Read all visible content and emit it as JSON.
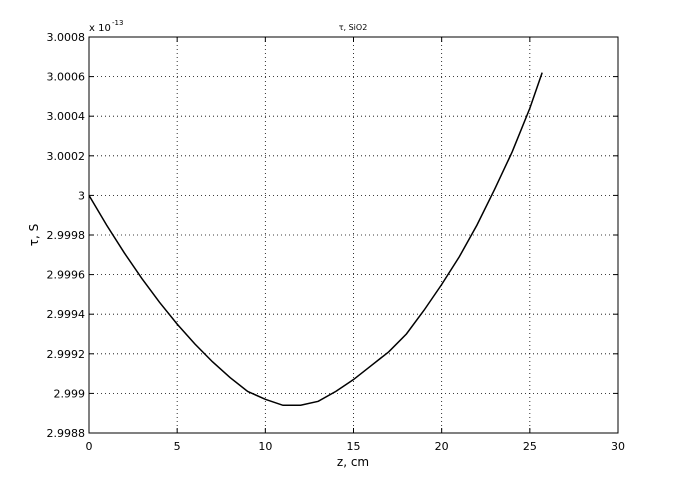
{
  "chart_data": {
    "type": "line",
    "title": "τ, SiO2",
    "x_label": "z, cm",
    "y_label": "τ, S",
    "multiplier": "x 10",
    "multiplier_exponent": "-13",
    "x": [
      0,
      1,
      2,
      3,
      4,
      5,
      6,
      7,
      8,
      9,
      10,
      11,
      12,
      13,
      14,
      15,
      16,
      17,
      18,
      19,
      20,
      21,
      22,
      23,
      24,
      25,
      25.7
    ],
    "series": [
      {
        "color": "#000000",
        "values": [
          3.0,
          2.99985,
          2.99971,
          2.99958,
          2.99946,
          2.99935,
          2.99925,
          2.99916,
          2.99908,
          2.99901,
          2.99897,
          2.99894,
          2.99894,
          2.99896,
          2.99901,
          2.99907,
          2.99914,
          2.99921,
          2.9993,
          2.99942,
          2.99955,
          2.99969,
          2.99985,
          3.00003,
          3.00022,
          3.00044,
          3.00062
        ]
      }
    ],
    "xlim": [
      0,
      30
    ],
    "xticks": [
      0,
      5,
      10,
      15,
      20,
      25,
      30
    ],
    "ylim": [
      2.9988,
      3.0008
    ],
    "yticks": [
      2.9988,
      2.999,
      2.9992,
      2.9994,
      2.9996,
      2.9998,
      3,
      3.0002,
      3.0004,
      3.0006,
      3.0008
    ],
    "grid": true
  }
}
